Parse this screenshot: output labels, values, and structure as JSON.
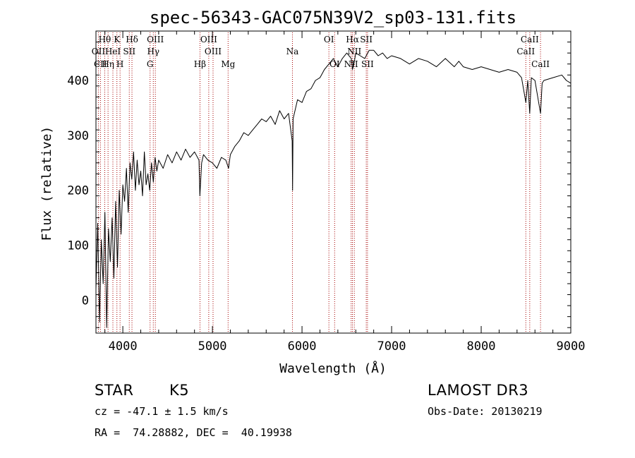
{
  "chart_data": {
    "type": "line",
    "title": "spec-56343-GAC075N39V2_sp03-131.fits",
    "xlabel": "Wavelength (Å)",
    "ylabel": "Flux (relative)",
    "xlim": [
      3700,
      9000
    ],
    "ylim": [
      -60,
      490
    ],
    "xticks": [
      4000,
      5000,
      6000,
      7000,
      8000,
      9000
    ],
    "yticks": [
      0,
      100,
      200,
      300,
      400
    ],
    "grid": false,
    "series": [
      {
        "name": "flux",
        "x": [
          3700,
          3720,
          3740,
          3760,
          3780,
          3800,
          3820,
          3840,
          3860,
          3880,
          3900,
          3920,
          3940,
          3960,
          3980,
          4000,
          4020,
          4040,
          4060,
          4080,
          4100,
          4120,
          4140,
          4160,
          4180,
          4200,
          4220,
          4240,
          4260,
          4280,
          4300,
          4320,
          4340,
          4360,
          4380,
          4400,
          4450,
          4500,
          4550,
          4600,
          4650,
          4700,
          4750,
          4800,
          4850,
          4860,
          4880,
          4900,
          4950,
          5000,
          5050,
          5100,
          5150,
          5180,
          5200,
          5250,
          5300,
          5350,
          5400,
          5450,
          5500,
          5550,
          5600,
          5650,
          5700,
          5750,
          5800,
          5850,
          5890,
          5895,
          5900,
          5950,
          6000,
          6050,
          6100,
          6150,
          6200,
          6250,
          6300,
          6350,
          6400,
          6450,
          6500,
          6550,
          6563,
          6580,
          6600,
          6650,
          6700,
          6750,
          6800,
          6850,
          6900,
          6950,
          7000,
          7100,
          7200,
          7300,
          7400,
          7500,
          7600,
          7700,
          7750,
          7800,
          7900,
          8000,
          8100,
          8200,
          8300,
          8400,
          8450,
          8498,
          8520,
          8542,
          8560,
          8600,
          8662,
          8680,
          8700,
          8800,
          8900,
          8950,
          9000
        ],
        "y": [
          20,
          140,
          -40,
          110,
          30,
          160,
          -50,
          130,
          70,
          150,
          40,
          180,
          60,
          200,
          120,
          210,
          180,
          240,
          160,
          250,
          220,
          270,
          200,
          255,
          210,
          235,
          190,
          270,
          210,
          230,
          200,
          250,
          215,
          260,
          235,
          255,
          240,
          265,
          250,
          270,
          255,
          275,
          260,
          270,
          255,
          190,
          250,
          265,
          255,
          250,
          240,
          260,
          255,
          240,
          265,
          280,
          290,
          305,
          300,
          310,
          320,
          330,
          325,
          335,
          320,
          345,
          330,
          340,
          290,
          200,
          330,
          365,
          360,
          380,
          385,
          400,
          405,
          420,
          430,
          440,
          425,
          440,
          450,
          440,
          420,
          430,
          450,
          445,
          440,
          455,
          455,
          445,
          450,
          440,
          445,
          440,
          430,
          440,
          435,
          425,
          440,
          425,
          435,
          425,
          420,
          425,
          420,
          415,
          420,
          415,
          405,
          360,
          400,
          340,
          405,
          400,
          340,
          395,
          400,
          405,
          410,
          400,
          395
        ]
      }
    ],
    "line_labels": [
      {
        "label": "Hθ",
        "x": 3798,
        "row": 1
      },
      {
        "label": "K",
        "x": 3934,
        "row": 1
      },
      {
        "label": "Hδ",
        "x": 4102,
        "row": 1
      },
      {
        "label": "OII",
        "x": 3727,
        "row": 2
      },
      {
        "label": "HeI",
        "x": 3889,
        "row": 2
      },
      {
        "label": "SII",
        "x": 4072,
        "row": 2
      },
      {
        "label": "Hγ",
        "x": 4340,
        "row": 2
      },
      {
        "label": "CII",
        "x": 3750,
        "row": 3
      },
      {
        "label": "Hη",
        "x": 3835,
        "row": 3
      },
      {
        "label": "H",
        "x": 3969,
        "row": 3
      },
      {
        "label": "G",
        "x": 4304,
        "row": 3
      },
      {
        "label": "OIII",
        "x": 4363,
        "row": 1
      },
      {
        "label": "OIII",
        "x": 4959,
        "row": 1
      },
      {
        "label": "OIII",
        "x": 5007,
        "row": 2
      },
      {
        "label": "Hβ",
        "x": 4861,
        "row": 3
      },
      {
        "label": "Mg",
        "x": 5175,
        "row": 3
      },
      {
        "label": "Na",
        "x": 5893,
        "row": 2
      },
      {
        "label": "OI",
        "x": 6300,
        "row": 1
      },
      {
        "label": "OI",
        "x": 6364,
        "row": 3
      },
      {
        "label": "Hα",
        "x": 6563,
        "row": 1
      },
      {
        "label": "NII",
        "x": 6584,
        "row": 2
      },
      {
        "label": "NII",
        "x": 6548,
        "row": 3
      },
      {
        "label": "SII",
        "x": 6717,
        "row": 1
      },
      {
        "label": "SII",
        "x": 6731,
        "row": 3
      },
      {
        "label": "CaII",
        "x": 8542,
        "row": 1
      },
      {
        "label": "CaII",
        "x": 8498,
        "row": 2
      },
      {
        "label": "CaII",
        "x": 8662,
        "row": 3
      }
    ],
    "marker_lines": [
      3727,
      3750,
      3798,
      3835,
      3889,
      3934,
      3969,
      4072,
      4102,
      4304,
      4340,
      4363,
      4861,
      4959,
      5007,
      5175,
      5893,
      6300,
      6364,
      6548,
      6563,
      6584,
      6717,
      6731,
      8498,
      8542,
      8662
    ],
    "colors": {
      "marker_line": "#a50000",
      "spectrum": "#000000",
      "axis": "#000000"
    }
  },
  "info": {
    "object_type": "STAR",
    "subclass": "K5",
    "survey": "LAMOST DR3",
    "cz": "cz = -47.1 ± 1.5 km/s",
    "obs_date": "Obs-Date: 20130219",
    "radec": "RA =  74.28882, DEC =  40.19938"
  }
}
